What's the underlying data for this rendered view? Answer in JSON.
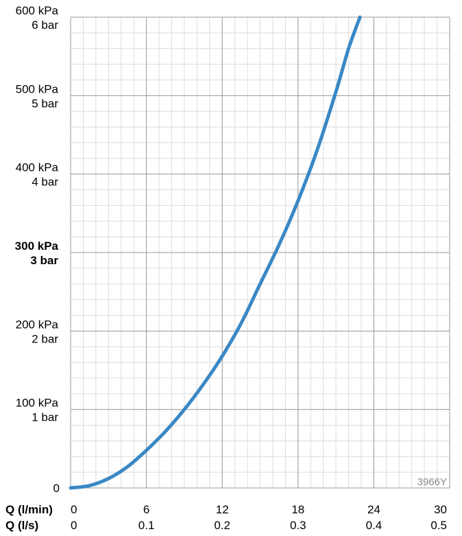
{
  "chart_data": {
    "type": "line",
    "title": "",
    "code_label": "3966Y",
    "x_axis": {
      "headers": [
        "Q (l/min)",
        "Q (l/s)"
      ],
      "ticks_lmin": [
        "0",
        "6",
        "12",
        "18",
        "24",
        "30"
      ],
      "ticks_ls": [
        "0",
        "0.1",
        "0.2",
        "0.3",
        "0.4",
        "0.5"
      ],
      "range": [
        0,
        30
      ]
    },
    "y_axis": {
      "range": [
        0,
        600
      ],
      "ticks": [
        {
          "value": 0,
          "kpa": "0",
          "bar": "",
          "bold": false
        },
        {
          "value": 100,
          "kpa": "100 kPa",
          "bar": "1 bar",
          "bold": false
        },
        {
          "value": 200,
          "kpa": "200 kPa",
          "bar": "2 bar",
          "bold": false
        },
        {
          "value": 300,
          "kpa": "300 kPa",
          "bar": "3 bar",
          "bold": true
        },
        {
          "value": 400,
          "kpa": "400 kPa",
          "bar": "4 bar",
          "bold": false
        },
        {
          "value": 500,
          "kpa": "500 kPa",
          "bar": "5 bar",
          "bold": false
        },
        {
          "value": 600,
          "kpa": "600 kPa",
          "bar": "6 bar",
          "bold": false
        }
      ]
    },
    "grid": true,
    "series": [
      {
        "color": "#3a88c5",
        "points": [
          [
            0,
            0
          ],
          [
            1.5,
            3
          ],
          [
            3,
            12
          ],
          [
            4.5,
            27
          ],
          [
            6,
            48
          ],
          [
            7.5,
            72
          ],
          [
            9,
            100
          ],
          [
            10.5,
            132
          ],
          [
            12,
            168
          ],
          [
            13.5,
            210
          ],
          [
            15,
            260
          ],
          [
            16.5,
            310
          ],
          [
            18,
            366
          ],
          [
            19.5,
            430
          ],
          [
            21,
            505
          ],
          [
            22,
            560
          ],
          [
            22.9,
            600
          ]
        ]
      }
    ]
  }
}
